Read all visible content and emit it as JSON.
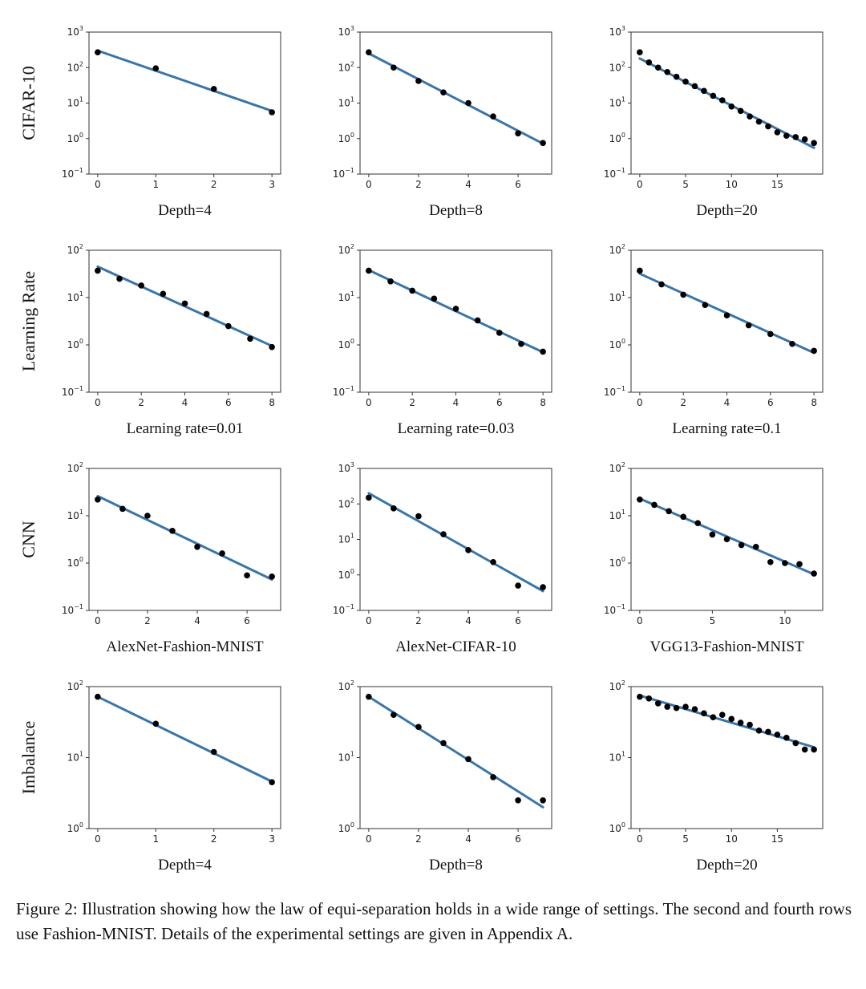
{
  "colors": {
    "line": "#3a75a8",
    "points": "#000000"
  },
  "chart_data": [
    {
      "type": "scatter",
      "row_label": "CIFAR-10",
      "xlabel": "Depth=4",
      "ylim_exp": [
        -1,
        3
      ],
      "xticks": [
        0,
        1,
        2,
        3
      ],
      "xlim": [
        -0.15,
        3.15
      ],
      "x": [
        0,
        1,
        2,
        3
      ],
      "y": [
        270,
        95,
        25,
        5.5
      ],
      "fit": {
        "x0": 0,
        "y0": 300,
        "x1": 3,
        "y1": 6
      }
    },
    {
      "type": "scatter",
      "row_label": "",
      "xlabel": "Depth=8",
      "ylim_exp": [
        -1,
        3
      ],
      "xticks": [
        0,
        2,
        4,
        6
      ],
      "xlim": [
        -0.35,
        7.35
      ],
      "x": [
        0,
        1,
        2,
        3,
        4,
        5,
        6,
        7
      ],
      "y": [
        270,
        100,
        42,
        20,
        10,
        4.2,
        1.4,
        0.75
      ],
      "fit": {
        "x0": 0,
        "y0": 250,
        "x1": 7,
        "y1": 0.72
      }
    },
    {
      "type": "scatter",
      "row_label": "",
      "xlabel": "Depth=20",
      "ylim_exp": [
        -1,
        3
      ],
      "xticks": [
        0,
        5,
        10,
        15
      ],
      "xlim": [
        -0.95,
        19.95
      ],
      "x": [
        0,
        1,
        2,
        3,
        4,
        5,
        6,
        7,
        8,
        9,
        10,
        11,
        12,
        13,
        14,
        15,
        16,
        17,
        18,
        19
      ],
      "y": [
        270,
        140,
        100,
        75,
        55,
        40,
        30,
        22,
        16,
        12,
        8,
        6,
        4.2,
        3,
        2.2,
        1.5,
        1.2,
        1.1,
        0.95,
        0.75
      ],
      "fit": {
        "x0": 0,
        "y0": 180,
        "x1": 19,
        "y1": 0.55
      }
    },
    {
      "type": "scatter",
      "row_label": "Learning Rate",
      "xlabel": "Learning rate=0.01",
      "ylim_exp": [
        -1,
        2
      ],
      "xticks": [
        0,
        2,
        4,
        6,
        8
      ],
      "xlim": [
        -0.4,
        8.4
      ],
      "x": [
        0,
        1,
        2,
        3,
        4,
        5,
        6,
        7,
        8
      ],
      "y": [
        37,
        25,
        18,
        12,
        7.5,
        4.5,
        2.5,
        1.35,
        0.9
      ],
      "fit": {
        "x0": 0,
        "y0": 45,
        "x1": 8,
        "y1": 0.95
      }
    },
    {
      "type": "scatter",
      "row_label": "",
      "xlabel": "Learning rate=0.03",
      "ylim_exp": [
        -1,
        2
      ],
      "xticks": [
        0,
        2,
        4,
        6,
        8
      ],
      "xlim": [
        -0.4,
        8.4
      ],
      "x": [
        0,
        1,
        2,
        3,
        4,
        5,
        6,
        7,
        8
      ],
      "y": [
        37,
        22,
        14,
        9.5,
        5.8,
        3.3,
        1.8,
        1.05,
        0.72
      ],
      "fit": {
        "x0": 0,
        "y0": 38,
        "x1": 8,
        "y1": 0.7
      }
    },
    {
      "type": "scatter",
      "row_label": "",
      "xlabel": "Learning rate=0.1",
      "ylim_exp": [
        -1,
        2
      ],
      "xticks": [
        0,
        2,
        4,
        6,
        8
      ],
      "xlim": [
        -0.4,
        8.4
      ],
      "x": [
        0,
        1,
        2,
        3,
        4,
        5,
        6,
        7,
        8
      ],
      "y": [
        37,
        19,
        11.5,
        7,
        4.2,
        2.6,
        1.7,
        1.05,
        0.75
      ],
      "fit": {
        "x0": 0,
        "y0": 32,
        "x1": 8,
        "y1": 0.68
      }
    },
    {
      "type": "scatter",
      "row_label": "CNN",
      "xlabel": "AlexNet-Fashion-MNIST",
      "ylim_exp": [
        -1,
        2
      ],
      "xticks": [
        0,
        2,
        4,
        6
      ],
      "xlim": [
        -0.35,
        7.35
      ],
      "x": [
        0,
        1,
        2,
        3,
        4,
        5,
        6,
        7
      ],
      "y": [
        22,
        14,
        10,
        4.8,
        2.2,
        1.6,
        0.55,
        0.52
      ],
      "fit": {
        "x0": 0,
        "y0": 26,
        "x1": 7,
        "y1": 0.45
      }
    },
    {
      "type": "scatter",
      "row_label": "",
      "xlabel": "AlexNet-CIFAR-10",
      "ylim_exp": [
        -1,
        3
      ],
      "xticks": [
        0,
        2,
        4,
        6
      ],
      "xlim": [
        -0.35,
        7.35
      ],
      "x": [
        0,
        1,
        2,
        3,
        4,
        5,
        6,
        7
      ],
      "y": [
        150,
        75,
        45,
        14,
        5,
        2.3,
        0.5,
        0.45
      ],
      "fit": {
        "x0": 0,
        "y0": 200,
        "x1": 7,
        "y1": 0.35
      }
    },
    {
      "type": "scatter",
      "row_label": "",
      "xlabel": "VGG13-Fashion-MNIST",
      "ylim_exp": [
        -1,
        2
      ],
      "xticks": [
        0,
        5,
        10
      ],
      "xlim": [
        -0.6,
        12.6
      ],
      "x": [
        0,
        1,
        2,
        3,
        4,
        5,
        6,
        7,
        8,
        9,
        10,
        11,
        12
      ],
      "y": [
        22,
        17,
        12.5,
        9.5,
        7,
        4,
        3.2,
        2.4,
        2.2,
        1.05,
        1,
        0.95,
        0.6
      ],
      "fit": {
        "x0": 0,
        "y0": 23,
        "x1": 12,
        "y1": 0.58
      }
    },
    {
      "type": "scatter",
      "row_label": "Imbalance",
      "xlabel": "Depth=4",
      "ylim_exp": [
        0,
        2
      ],
      "xticks": [
        0,
        1,
        2,
        3
      ],
      "xlim": [
        -0.15,
        3.15
      ],
      "x": [
        0,
        1,
        2,
        3
      ],
      "y": [
        72,
        30,
        12,
        4.5
      ],
      "fit": {
        "x0": 0,
        "y0": 72,
        "x1": 3,
        "y1": 4.6
      }
    },
    {
      "type": "scatter",
      "row_label": "",
      "xlabel": "Depth=8",
      "ylim_exp": [
        0,
        2
      ],
      "xticks": [
        0,
        2,
        4,
        6
      ],
      "xlim": [
        -0.35,
        7.35
      ],
      "x": [
        0,
        1,
        2,
        3,
        4,
        5,
        6,
        7
      ],
      "y": [
        72,
        40,
        27,
        16,
        9.5,
        5.3,
        2.5,
        2.5
      ],
      "fit": {
        "x0": 0,
        "y0": 72,
        "x1": 7,
        "y1": 2
      }
    },
    {
      "type": "scatter",
      "row_label": "",
      "xlabel": "Depth=20",
      "ylim_exp": [
        0,
        2
      ],
      "xticks": [
        0,
        5,
        10,
        15
      ],
      "xlim": [
        -0.95,
        19.95
      ],
      "x": [
        0,
        1,
        2,
        3,
        4,
        5,
        6,
        7,
        8,
        9,
        10,
        11,
        12,
        13,
        14,
        15,
        16,
        17,
        18,
        19
      ],
      "y": [
        72,
        68,
        58,
        52,
        50,
        52,
        48,
        42,
        37,
        40,
        35,
        31,
        29,
        24,
        23,
        21,
        19,
        16,
        13,
        13
      ],
      "fit": {
        "x0": 0,
        "y0": 75,
        "x1": 19,
        "y1": 14
      }
    }
  ],
  "caption": "Figure 2: Illustration showing how the law of equi-separation holds in a wide range of settings. The second and fourth rows use Fashion-MNIST. Details of the experimental settings are given in Appendix A."
}
